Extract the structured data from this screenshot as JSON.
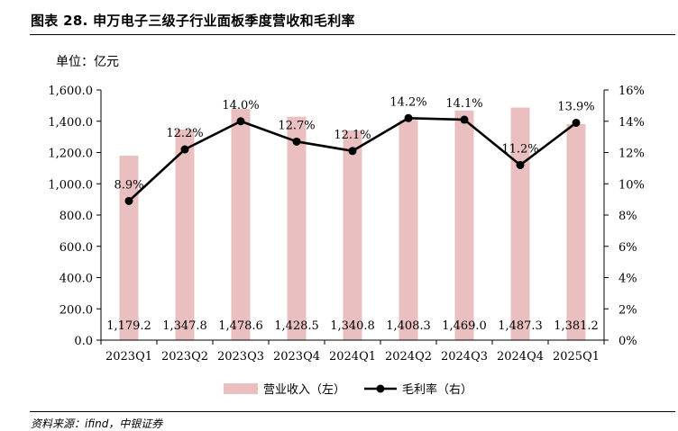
{
  "header": {
    "title": "图表 28. 申万电子三级子行业面板季度营收和毛利率",
    "unit": "单位：亿元"
  },
  "footer": {
    "source": "资料来源：ifind，中银证券"
  },
  "colors": {
    "bar": "#e9bfbf",
    "line": "#000000",
    "axis": "#000000"
  },
  "chart_data": {
    "type": "bar",
    "categories": [
      "2023Q1",
      "2023Q2",
      "2023Q3",
      "2023Q4",
      "2024Q1",
      "2024Q2",
      "2024Q3",
      "2024Q4",
      "2025Q1"
    ],
    "series": [
      {
        "name": "营业收入（左）",
        "type": "bar",
        "axis": "left",
        "values": [
          1179.2,
          1347.8,
          1478.6,
          1428.5,
          1340.8,
          1408.3,
          1469.0,
          1487.3,
          1381.2
        ],
        "labels": [
          "1,179.2",
          "1,347.8",
          "1,478.6",
          "1,428.5",
          "1,340.8",
          "1,408.3",
          "1,469.0",
          "1,487.3",
          "1,381.2"
        ]
      },
      {
        "name": "毛利率（右）",
        "type": "line",
        "axis": "right",
        "values": [
          8.9,
          12.2,
          14.0,
          12.7,
          12.1,
          14.2,
          14.1,
          11.2,
          13.9
        ],
        "labels": [
          "8.9%",
          "12.2%",
          "14.0%",
          "12.7%",
          "12.1%",
          "14.2%",
          "14.1%",
          "11.2%",
          "13.9%"
        ]
      }
    ],
    "y_left": {
      "min": 0,
      "max": 1600,
      "ticks": [
        "0.0",
        "200.0",
        "400.0",
        "600.0",
        "800.0",
        "1,000.0",
        "1,200.0",
        "1,400.0",
        "1,600.0"
      ]
    },
    "y_right": {
      "min": 0,
      "max": 16,
      "ticks": [
        "0%",
        "2%",
        "4%",
        "6%",
        "8%",
        "10%",
        "12%",
        "14%",
        "16%"
      ]
    },
    "grid": false,
    "legend": "bottom"
  }
}
